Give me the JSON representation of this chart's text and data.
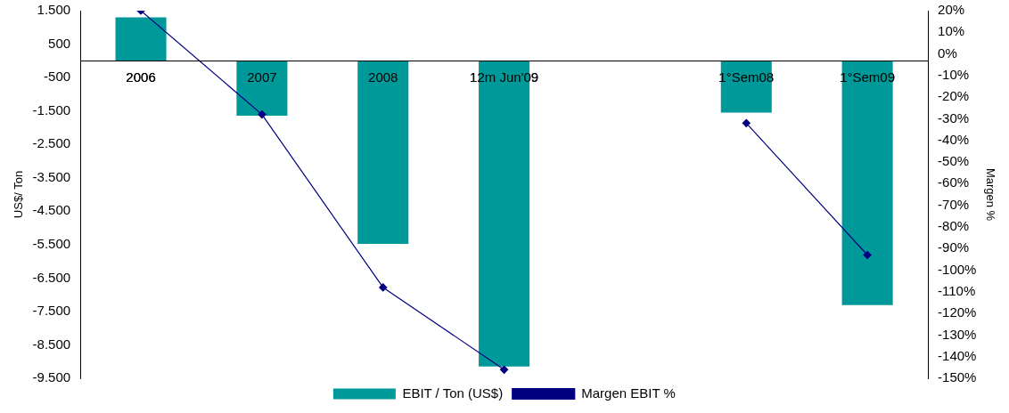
{
  "chart_data": {
    "type": "bar",
    "categories": [
      "2006",
      "2007",
      "2008",
      "12m Jun'09",
      null,
      "1°Sem08",
      "1°Sem09"
    ],
    "series": [
      {
        "name": "EBIT / Ton (US$)",
        "color": "#009999",
        "values": [
          1300,
          -1640,
          -5480,
          -9150,
          null,
          -1550,
          -7310
        ]
      },
      {
        "name": "Margen EBIT %",
        "type": "line",
        "axis": "y2",
        "color": "#000080",
        "values": [
          20,
          -28,
          -108,
          -146,
          null,
          -32,
          -93
        ]
      }
    ],
    "ylabel": "US$/ Ton",
    "y2label": "Margen %",
    "ylim": [
      -9500,
      1500
    ],
    "yticks": [
      {
        "value": 1500,
        "label": "1.500"
      },
      {
        "value": 500,
        "label": "500"
      },
      {
        "value": -500,
        "label": "-500"
      },
      {
        "value": -1500,
        "label": "-1.500"
      },
      {
        "value": -2500,
        "label": "-2.500"
      },
      {
        "value": -3500,
        "label": "-3.500"
      },
      {
        "value": -4500,
        "label": "-4.500"
      },
      {
        "value": -5500,
        "label": "-5.500"
      },
      {
        "value": -6500,
        "label": "-6.500"
      },
      {
        "value": -7500,
        "label": "-7.500"
      },
      {
        "value": -8500,
        "label": "-8.500"
      },
      {
        "value": -9500,
        "label": "-9.500"
      }
    ],
    "y2lim": [
      -150,
      20
    ],
    "y2ticks": [
      {
        "value": 20,
        "label": "20%"
      },
      {
        "value": 10,
        "label": "10%"
      },
      {
        "value": 0,
        "label": "0%"
      },
      {
        "value": -10,
        "label": "-10%"
      },
      {
        "value": -20,
        "label": "-20%"
      },
      {
        "value": -30,
        "label": "-30%"
      },
      {
        "value": -40,
        "label": "-40%"
      },
      {
        "value": -50,
        "label": "-50%"
      },
      {
        "value": -60,
        "label": "-60%"
      },
      {
        "value": -70,
        "label": "-70%"
      },
      {
        "value": -80,
        "label": "-80%"
      },
      {
        "value": -90,
        "label": "-90%"
      },
      {
        "value": -100,
        "label": "-100%"
      },
      {
        "value": -110,
        "label": "-110%"
      },
      {
        "value": -120,
        "label": "-120%"
      },
      {
        "value": -130,
        "label": "-130%"
      },
      {
        "value": -140,
        "label": "-140%"
      },
      {
        "value": -150,
        "label": "-150%"
      }
    ],
    "grid": false,
    "legend": "bottom",
    "marker": "diamond",
    "line_style": "solid"
  }
}
